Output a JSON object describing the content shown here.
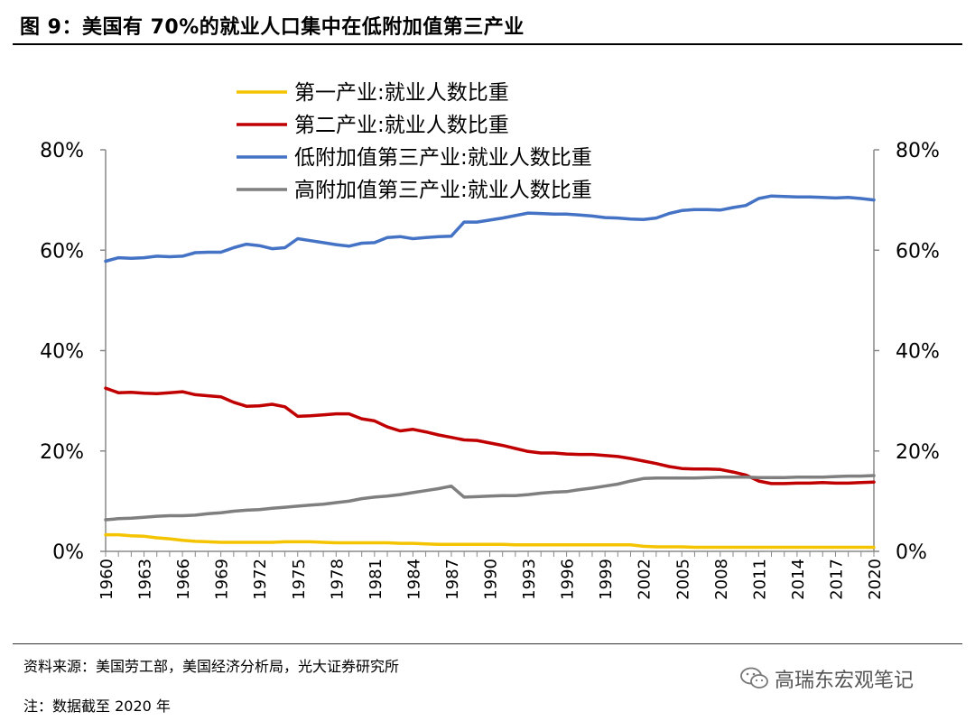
{
  "header": {
    "title": "图 9：美国有 70%的就业人口集中在低附加值第三产业"
  },
  "footer": {
    "source": "资料来源：美国劳工部，美国经济分析局，光大证券研究所",
    "note": "注：数据截至 2020 年",
    "watermark": "高瑞东宏观笔记"
  },
  "colors": {
    "primary": "#f5c400",
    "secondary": "#c00000",
    "low_service": "#4472c4",
    "high_service": "#7f7f7f"
  },
  "chart_data": {
    "type": "line",
    "ylim": [
      0,
      80
    ],
    "yticks": [
      "0%",
      "20%",
      "40%",
      "60%",
      "80%"
    ],
    "y2ticks": [
      "0%",
      "20%",
      "40%",
      "60%",
      "80%"
    ],
    "xtick_labels": [
      "1960",
      "1963",
      "1966",
      "1969",
      "1972",
      "1975",
      "1978",
      "1981",
      "1984",
      "1987",
      "1990",
      "1993",
      "1996",
      "1999",
      "2002",
      "2005",
      "2008",
      "2011",
      "2014",
      "2017",
      "2020"
    ],
    "legend_position": "top",
    "x": [
      1960,
      1961,
      1962,
      1963,
      1964,
      1965,
      1966,
      1967,
      1968,
      1969,
      1970,
      1971,
      1972,
      1973,
      1974,
      1975,
      1976,
      1977,
      1978,
      1979,
      1980,
      1981,
      1982,
      1983,
      1984,
      1985,
      1986,
      1987,
      1988,
      1989,
      1990,
      1991,
      1992,
      1993,
      1994,
      1995,
      1996,
      1997,
      1998,
      1999,
      2000,
      2001,
      2002,
      2003,
      2004,
      2005,
      2006,
      2007,
      2008,
      2009,
      2010,
      2011,
      2012,
      2013,
      2014,
      2015,
      2016,
      2017,
      2018,
      2019,
      2020
    ],
    "series": [
      {
        "name": "第一产业:就业人数比重",
        "color": "#f5c400",
        "values": [
          3.3,
          3.3,
          3.1,
          3.0,
          2.7,
          2.5,
          2.2,
          2.0,
          1.9,
          1.8,
          1.8,
          1.8,
          1.8,
          1.8,
          1.9,
          1.9,
          1.9,
          1.8,
          1.7,
          1.7,
          1.7,
          1.7,
          1.7,
          1.6,
          1.6,
          1.5,
          1.4,
          1.4,
          1.4,
          1.4,
          1.4,
          1.4,
          1.3,
          1.3,
          1.3,
          1.3,
          1.3,
          1.3,
          1.3,
          1.3,
          1.3,
          1.3,
          1.0,
          0.9,
          0.9,
          0.9,
          0.8,
          0.8,
          0.8,
          0.8,
          0.8,
          0.8,
          0.8,
          0.8,
          0.8,
          0.8,
          0.8,
          0.8,
          0.8,
          0.8,
          0.8
        ]
      },
      {
        "name": "第二产业:就业人数比重",
        "color": "#c00000",
        "values": [
          32.5,
          31.6,
          31.7,
          31.5,
          31.4,
          31.6,
          31.8,
          31.2,
          31.0,
          30.8,
          29.7,
          28.9,
          29.0,
          29.3,
          28.8,
          26.9,
          27.0,
          27.2,
          27.4,
          27.4,
          26.4,
          26.0,
          24.8,
          24.0,
          24.3,
          23.8,
          23.2,
          22.7,
          22.2,
          22.1,
          21.6,
          21.1,
          20.5,
          19.9,
          19.6,
          19.6,
          19.4,
          19.3,
          19.3,
          19.1,
          18.9,
          18.5,
          18.0,
          17.5,
          16.9,
          16.5,
          16.4,
          16.4,
          16.3,
          15.8,
          15.2,
          14.0,
          13.5,
          13.5,
          13.6,
          13.6,
          13.7,
          13.6,
          13.6,
          13.7,
          13.8
        ]
      },
      {
        "name": "低附加值第三产业:就业人数比重",
        "color": "#4472c4",
        "values": [
          57.8,
          58.5,
          58.4,
          58.5,
          58.8,
          58.7,
          58.8,
          59.5,
          59.6,
          59.6,
          60.5,
          61.2,
          60.9,
          60.3,
          60.5,
          62.3,
          61.9,
          61.5,
          61.1,
          60.8,
          61.4,
          61.5,
          62.5,
          62.7,
          62.3,
          62.5,
          62.7,
          62.8,
          65.6,
          65.6,
          66.0,
          66.4,
          66.9,
          67.4,
          67.3,
          67.2,
          67.2,
          67.0,
          66.8,
          66.5,
          66.4,
          66.2,
          66.1,
          66.4,
          67.3,
          67.9,
          68.1,
          68.1,
          68.0,
          68.5,
          68.9,
          70.3,
          70.8,
          70.7,
          70.6,
          70.6,
          70.5,
          70.4,
          70.5,
          70.3,
          70.0
        ]
      },
      {
        "name": "高附加值第三产业:就业人数比重",
        "color": "#7f7f7f",
        "values": [
          6.3,
          6.5,
          6.6,
          6.8,
          7.0,
          7.1,
          7.1,
          7.2,
          7.5,
          7.7,
          8.0,
          8.2,
          8.3,
          8.6,
          8.8,
          9.0,
          9.2,
          9.4,
          9.7,
          10.0,
          10.5,
          10.8,
          11.0,
          11.3,
          11.7,
          12.1,
          12.5,
          13.0,
          10.8,
          10.9,
          11.0,
          11.1,
          11.1,
          11.3,
          11.6,
          11.8,
          11.9,
          12.3,
          12.6,
          13.0,
          13.4,
          14.0,
          14.5,
          14.6,
          14.6,
          14.6,
          14.6,
          14.7,
          14.8,
          14.8,
          14.8,
          14.7,
          14.7,
          14.7,
          14.8,
          14.8,
          14.8,
          14.9,
          15.0,
          15.0,
          15.1
        ]
      }
    ]
  }
}
